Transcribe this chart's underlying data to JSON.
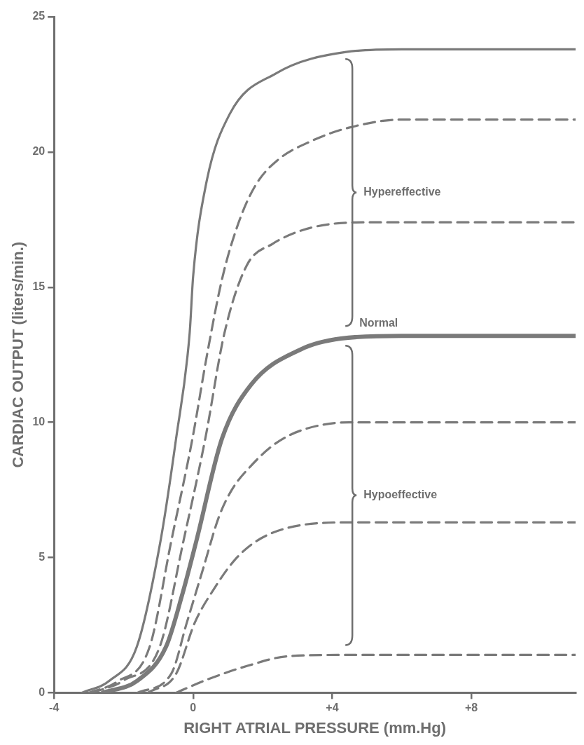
{
  "chart_data": {
    "type": "line",
    "xlabel": "RIGHT ATRIAL PRESSURE (mm.Hg)",
    "ylabel": "CARDIAC OUTPUT (liters/min.)",
    "xlim": [
      -4,
      11
    ],
    "ylim": [
      0,
      25
    ],
    "xticks": [
      -4,
      0,
      {
        "value": 4,
        "label": "+4"
      },
      {
        "value": 8,
        "label": "+8"
      }
    ],
    "yticks": [
      0,
      5,
      10,
      15,
      20,
      25
    ],
    "grid": false,
    "legend": false,
    "marker": "none",
    "series": [
      {
        "color": "#7a7a7a",
        "line_style": "solid",
        "x": [
          -3.2,
          -2.4,
          -1.62,
          -0.94,
          -0.49,
          -0.1,
          0.0,
          0.37,
          1.05,
          2.37,
          4.4,
          6,
          11
        ],
        "values": [
          0,
          0.45,
          1.7,
          5.6,
          9.4,
          13.3,
          15.4,
          18.8,
          21.4,
          22.9,
          23.7,
          23.8,
          23.8
        ]
      },
      {
        "color": "#7a7a7a",
        "line_style": "dashed",
        "x": [
          -3.0,
          -2.2,
          -1.25,
          -0.63,
          -0.02,
          0.4,
          0.85,
          1.34,
          1.81,
          2.43,
          3.39,
          4.48,
          6,
          11
        ],
        "values": [
          0,
          0.4,
          1.7,
          5.6,
          9.4,
          12.5,
          15.4,
          17.5,
          18.8,
          19.7,
          20.4,
          20.9,
          21.2,
          21.2
        ]
      },
      {
        "color": "#7a7a7a",
        "line_style": "dashed",
        "x": [
          -2.9,
          -2.0,
          -0.96,
          -0.28,
          0.35,
          0.9,
          1.54,
          2.28,
          3.39,
          5,
          11
        ],
        "values": [
          0,
          0.45,
          1.7,
          5.6,
          9.4,
          13.3,
          15.8,
          16.6,
          17.2,
          17.4,
          17.4
        ]
      },
      {
        "color": "#7a7a7a",
        "line_style": "solid",
        "x": [
          -2.6,
          -1.6,
          -0.78,
          -0.32,
          0.09,
          0.83,
          1.67,
          3.1,
          4.25,
          6,
          11
        ],
        "values": [
          0,
          0.45,
          1.7,
          3.6,
          5.6,
          9.4,
          11.4,
          12.7,
          13.1,
          13.2,
          13.2
        ]
      },
      {
        "color": "#7a7a7a",
        "line_style": "dashed",
        "x": [
          -1.6,
          -0.63,
          -0.18,
          0.29,
          0.74,
          1.11,
          1.67,
          2.35,
          3.1,
          4.48,
          11
        ],
        "values": [
          0,
          0.7,
          2.6,
          4.6,
          6.5,
          7.5,
          8.4,
          9.2,
          9.7,
          10.0,
          10.0
        ]
      },
      {
        "color": "#7a7a7a",
        "line_style": "dashed",
        "x": [
          -1.3,
          -0.49,
          0.05,
          0.58,
          1.19,
          1.81,
          2.73,
          4.48,
          11
        ],
        "values": [
          0,
          0.7,
          2.6,
          3.8,
          4.9,
          5.6,
          6.1,
          6.3,
          6.3
        ]
      },
      {
        "color": "#7a7a7a",
        "line_style": "dashed",
        "x": [
          -0.49,
          0.43,
          1.58,
          2.73,
          4.48,
          11
        ],
        "values": [
          0,
          0.5,
          1.0,
          1.35,
          1.4,
          1.4
        ]
      }
    ],
    "annotations": [
      "Hypereffective",
      "Normal",
      "Hypoeffective"
    ]
  }
}
